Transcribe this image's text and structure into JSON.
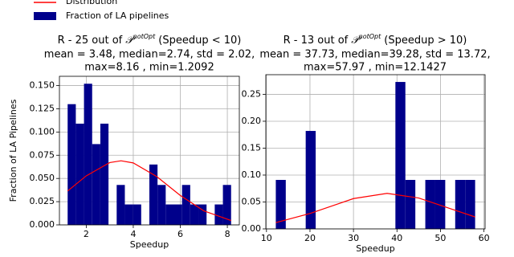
{
  "chart_data": [
    {
      "type": "histogram",
      "title": {
        "prefix": "R - 25 out of",
        "symbol": "𝒫",
        "superscript": "notOpt",
        "suffix": "(Speedup < 10)"
      },
      "subtitle": [
        "mean = 3.48, median=2.74, std = 2.02,",
        "max=8.16 , min=1.2092"
      ],
      "x_label": "Speedup",
      "y_label": "Fraction of LA Pipelines",
      "bins": [
        1.2092,
        1.5567,
        1.9042,
        2.2517,
        2.5992,
        2.9467,
        3.2942,
        3.6417,
        3.9892,
        4.3367,
        4.6842,
        5.0317,
        5.3792,
        5.7267,
        6.0742,
        6.4217,
        6.7692,
        7.1167,
        7.4642,
        7.8117,
        8.16
      ],
      "series": [
        {
          "name": "Distribution",
          "color": "#ff0000",
          "type": "line",
          "x": [
            1.2092,
            2,
            3,
            3.48,
            4,
            5,
            6,
            7,
            8.16
          ],
          "values": [
            0.0365,
            0.0528,
            0.0671,
            0.069,
            0.0667,
            0.052,
            0.0317,
            0.0151,
            0.0047
          ]
        },
        {
          "name": "Fraction of LA pipelines",
          "color": "#00008b",
          "type": "histogram",
          "values": [
            0.13,
            0.109,
            0.152,
            0.087,
            0.109,
            0,
            0.043,
            0.022,
            0.022,
            0,
            0.065,
            0.043,
            0.022,
            0.022,
            0.043,
            0.022,
            0.022,
            0,
            0.022,
            0.043
          ]
        }
      ],
      "xlim": [
        0.86,
        8.51
      ],
      "xticks": [
        2,
        4,
        6,
        8
      ],
      "ylim": [
        0,
        0.16
      ],
      "yticks": [
        {
          "value": 0,
          "label": "0.000"
        },
        0.025,
        {
          "value": 0.05,
          "label": "0.050"
        },
        0.075,
        {
          "value": 0.1,
          "label": "0.100"
        },
        0.125,
        {
          "value": 0.15,
          "label": "0.150"
        }
      ],
      "grid": true
    },
    {
      "type": "histogram",
      "title": {
        "prefix": "R - 13 out of",
        "symbol": "𝒫",
        "superscript": "notOpt",
        "suffix": "(Speedup > 10)"
      },
      "subtitle": [
        "mean = 37.73, median=39.28, std = 13.72,",
        "max=57.97 , min=12.1427"
      ],
      "x_label": "Speedup",
      "bins": [
        12.1427,
        14.4341,
        16.7255,
        19.0169,
        21.3083,
        23.5997,
        25.8911,
        28.1825,
        30.4739,
        32.7653,
        35.0567,
        37.3481,
        39.6395,
        41.9309,
        44.2223,
        46.5137,
        48.8051,
        51.0965,
        53.3879,
        55.6793,
        57.97
      ],
      "series": [
        {
          "color": "#ff0000",
          "type": "line",
          "x": [
            12.1427,
            20,
            30,
            37.73,
            45,
            52,
            57.97
          ],
          "values": [
            0.0116,
            0.0286,
            0.0563,
            0.066,
            0.0574,
            0.0384,
            0.0222
          ]
        },
        {
          "color": "#00008b",
          "type": "histogram",
          "values": [
            0.091,
            0,
            0,
            0.182,
            0,
            0,
            0,
            0,
            0,
            0,
            0,
            0,
            0.273,
            0.091,
            0,
            0.091,
            0.091,
            0,
            0.091,
            0.091
          ]
        }
      ],
      "xlim": [
        9.85,
        60.26
      ],
      "xticks": [
        10,
        20,
        30,
        40,
        50,
        60
      ],
      "ylim": [
        0,
        0.2865
      ],
      "yticks": [
        {
          "value": 0,
          "label": "0.00"
        },
        0.05,
        {
          "value": 0.1,
          "label": "0.10"
        },
        0.15,
        {
          "value": 0.2,
          "label": "0.20"
        },
        0.25
      ],
      "grid": true
    }
  ]
}
